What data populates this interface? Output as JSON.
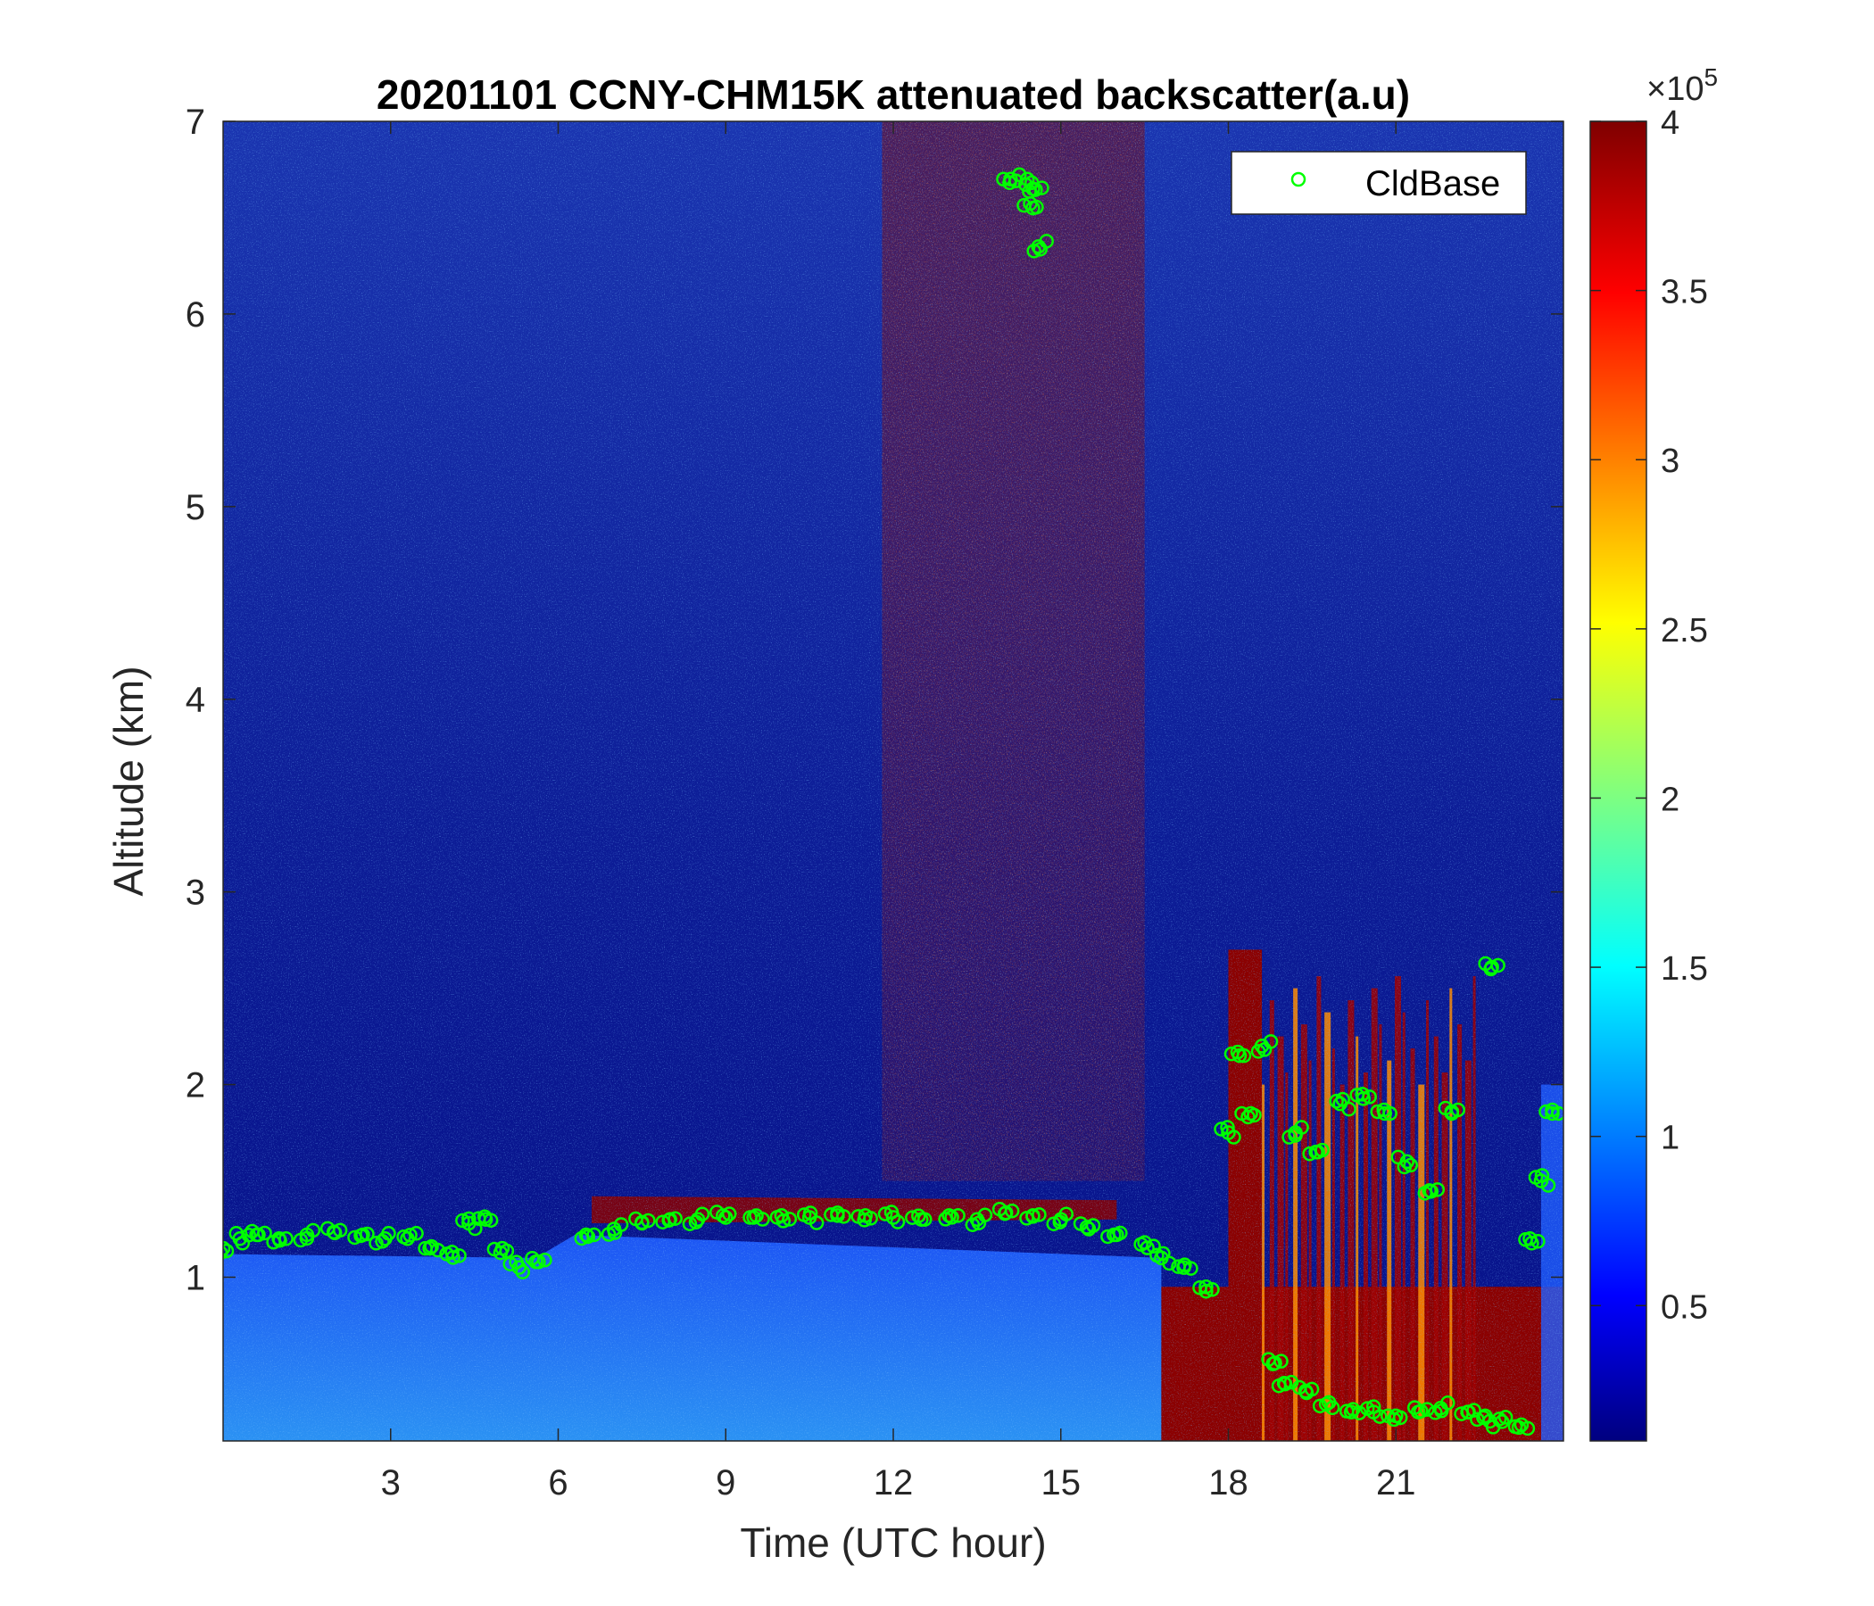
{
  "chart_data": {
    "type": "heatmap",
    "title": "20201101 CCNY-CHM15K attenuated backscatter(a.u)",
    "xlabel": "Time (UTC hour)",
    "ylabel": "Altitude (km)",
    "xlim": [
      0,
      24
    ],
    "ylim": [
      0.15,
      7
    ],
    "x_ticks": [
      3,
      6,
      9,
      12,
      15,
      18,
      21
    ],
    "y_ticks": [
      1,
      2,
      3,
      4,
      5,
      6,
      7
    ],
    "colorbar": {
      "colormap": "jet",
      "clim": [
        10000,
        400000
      ],
      "ticks": [
        {
          "value": 50000,
          "label": "0.5"
        },
        {
          "value": 100000,
          "label": "1"
        },
        {
          "value": 150000,
          "label": "1.5"
        },
        {
          "value": 200000,
          "label": "2"
        },
        {
          "value": 250000,
          "label": "2.5"
        },
        {
          "value": 300000,
          "label": "3"
        },
        {
          "value": 350000,
          "label": "3.5"
        },
        {
          "value": 400000,
          "label": "4"
        }
      ],
      "exponent_label": "×10",
      "exponent": "5"
    },
    "legend": {
      "placement": "top-right",
      "entries": [
        "CldBase"
      ]
    },
    "series": [
      {
        "name": "CldBase",
        "marker": "circle",
        "color": "#00ff00",
        "x": [
          0.0,
          0.3,
          0.6,
          1.0,
          1.5,
          2.0,
          2.5,
          2.9,
          3.3,
          3.7,
          4.1,
          4.4,
          4.7,
          5.0,
          5.3,
          5.6,
          6.5,
          7.0,
          7.5,
          8.0,
          8.5,
          9.0,
          9.5,
          10.0,
          10.5,
          11.0,
          11.5,
          12.0,
          12.5,
          13.0,
          13.5,
          14.0,
          14.5,
          15.0,
          15.5,
          16.0,
          16.5,
          16.8,
          17.2,
          17.6,
          18.0,
          18.2,
          18.4,
          18.6,
          18.8,
          19.0,
          19.2,
          19.4,
          19.6,
          19.8,
          20.0,
          20.2,
          20.4,
          20.6,
          20.8,
          21.0,
          21.2,
          21.4,
          21.6,
          21.8,
          22.0,
          22.3,
          22.6,
          22.9,
          23.2,
          23.4,
          23.6,
          23.8,
          14.1,
          14.4,
          14.5,
          14.5,
          14.6,
          22.7
        ],
        "y": [
          1.15,
          1.2,
          1.22,
          1.2,
          1.22,
          1.23,
          1.22,
          1.2,
          1.2,
          1.15,
          1.13,
          1.28,
          1.3,
          1.15,
          1.05,
          1.08,
          1.22,
          1.25,
          1.28,
          1.3,
          1.3,
          1.31,
          1.31,
          1.32,
          1.31,
          1.32,
          1.32,
          1.31,
          1.3,
          1.32,
          1.3,
          1.33,
          1.32,
          1.3,
          1.25,
          1.22,
          1.18,
          1.1,
          1.05,
          0.95,
          1.75,
          2.15,
          1.85,
          2.2,
          0.55,
          0.45,
          1.75,
          0.4,
          1.65,
          0.35,
          1.9,
          0.3,
          1.95,
          0.3,
          1.85,
          0.28,
          1.6,
          0.3,
          1.45,
          0.32,
          1.85,
          0.3,
          0.28,
          0.25,
          0.22,
          1.2,
          1.5,
          1.85,
          6.7,
          6.7,
          6.55,
          6.65,
          6.35,
          2.6
        ]
      }
    ]
  }
}
